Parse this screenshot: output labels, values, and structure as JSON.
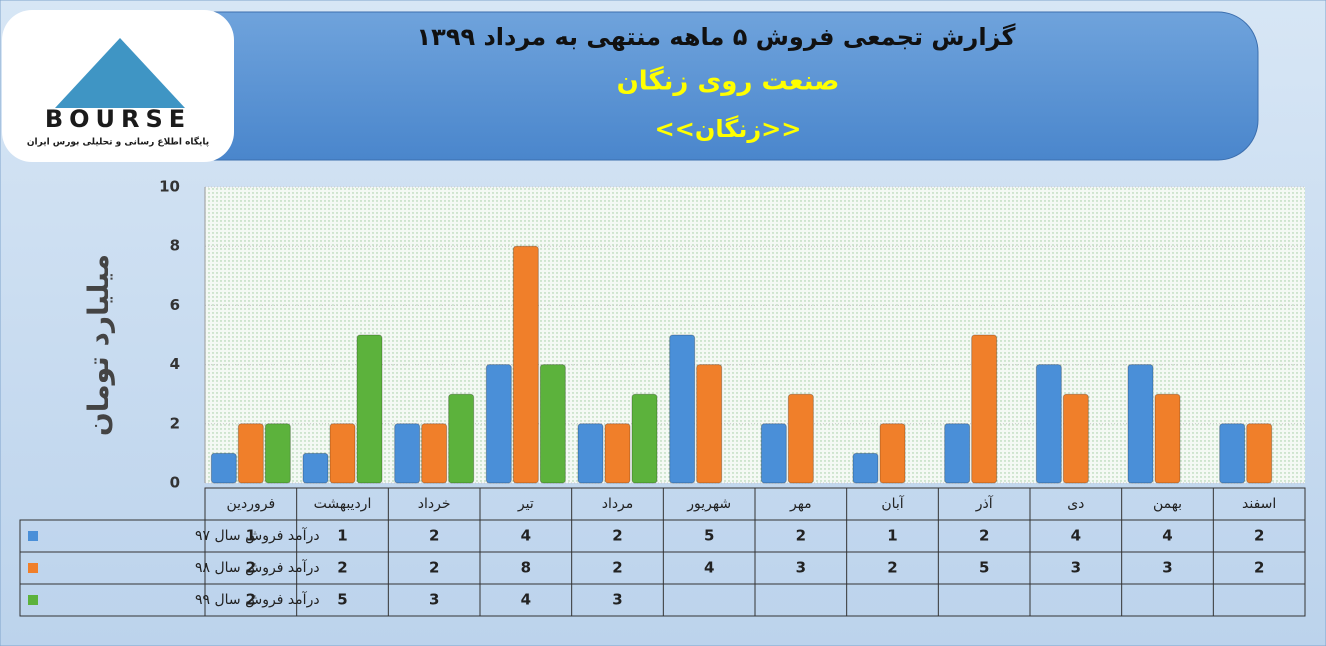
{
  "logo": {
    "text": "BOURSE",
    "tagline": "پایگاه اطلاع رسانی و تحلیلی بورس ایران"
  },
  "chart_data": {
    "type": "bar",
    "title": "گزارش تجمعی فروش  ۵ ماهه منتهی به مرداد ۱۳۹۹",
    "subtitle": "صنعت روی زنگان",
    "subtitle2": "<<زنگان>>",
    "y_label": "میلیارد تومان",
    "categories": [
      "فروردین",
      "اردیبهشت",
      "خرداد",
      "تیر",
      "مرداد",
      "شهریور",
      "مهر",
      "آبان",
      "آذر",
      "دی",
      "بهمن",
      "اسفند"
    ],
    "series": [
      {
        "name": "درآمد فروش سال ۹۷",
        "color": "#4a8fd8",
        "values": [
          1,
          1,
          2,
          4,
          2,
          5,
          2,
          1,
          2,
          4,
          4,
          2
        ]
      },
      {
        "name": "درآمد فروش سال ۹۸",
        "color": "#f07f2a",
        "values": [
          2,
          2,
          2,
          8,
          2,
          4,
          3,
          2,
          5,
          3,
          3,
          2
        ]
      },
      {
        "name": "درآمد فروش سال ۹۹",
        "color": "#5cb23c",
        "values": [
          2,
          5,
          3,
          4,
          3,
          null,
          null,
          null,
          null,
          null,
          null,
          null
        ]
      }
    ],
    "ylim": [
      0,
      10
    ],
    "yticks": [
      0,
      2,
      4,
      6,
      8,
      10
    ],
    "grid": true
  }
}
